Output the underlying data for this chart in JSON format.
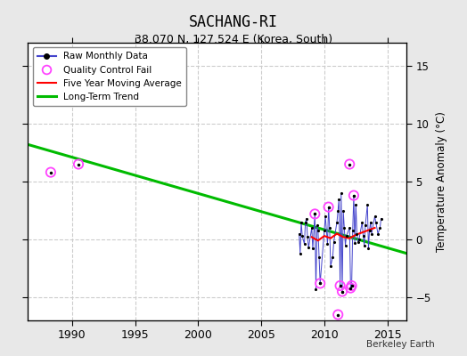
{
  "title": "SACHANG-RI",
  "subtitle": "38.070 N, 127.524 E (Korea, South)",
  "ylabel": "Temperature Anomaly (°C)",
  "credit": "Berkeley Earth",
  "xlim": [
    1986.5,
    2016.5
  ],
  "ylim": [
    -7,
    17
  ],
  "yticks": [
    -5,
    0,
    5,
    10,
    15
  ],
  "xticks": [
    1990,
    1995,
    2000,
    2005,
    2010,
    2015
  ],
  "fig_bg_color": "#e8e8e8",
  "plot_bg_color": "#ffffff",
  "grid_color": "#cccccc",
  "trend_x": [
    1986.5,
    2016.5
  ],
  "trend_y": [
    8.2,
    -1.2
  ],
  "monthly_data": [
    [
      2008.0,
      0.5
    ],
    [
      2008.083,
      -1.2
    ],
    [
      2008.167,
      1.5
    ],
    [
      2008.25,
      0.3
    ],
    [
      2008.417,
      -0.4
    ],
    [
      2008.5,
      1.5
    ],
    [
      2008.583,
      1.8
    ],
    [
      2008.667,
      0.2
    ],
    [
      2008.75,
      -0.7
    ],
    [
      2009.0,
      1.0
    ],
    [
      2009.083,
      -0.8
    ],
    [
      2009.25,
      2.2
    ],
    [
      2009.333,
      -4.3
    ],
    [
      2009.417,
      1.2
    ],
    [
      2009.5,
      0.8
    ],
    [
      2009.583,
      -1.5
    ],
    [
      2009.667,
      -3.8
    ],
    [
      2010.0,
      0.8
    ],
    [
      2010.083,
      2.0
    ],
    [
      2010.25,
      -0.4
    ],
    [
      2010.333,
      2.8
    ],
    [
      2010.417,
      1.0
    ],
    [
      2010.5,
      -2.3
    ],
    [
      2010.667,
      -1.5
    ],
    [
      2010.75,
      -0.2
    ],
    [
      2011.0,
      1.5
    ],
    [
      2011.083,
      2.5
    ],
    [
      2011.167,
      3.5
    ],
    [
      2011.25,
      -4.0
    ],
    [
      2011.333,
      4.0
    ],
    [
      2011.417,
      -4.5
    ],
    [
      2011.5,
      2.5
    ],
    [
      2011.583,
      1.0
    ],
    [
      2011.667,
      -0.5
    ],
    [
      2011.75,
      0.3
    ],
    [
      2012.0,
      1.0
    ],
    [
      2012.083,
      -4.2
    ],
    [
      2012.167,
      -4.0
    ],
    [
      2012.25,
      0.8
    ],
    [
      2012.333,
      3.8
    ],
    [
      2012.417,
      -0.3
    ],
    [
      2012.5,
      3.0
    ],
    [
      2012.583,
      0.5
    ],
    [
      2012.667,
      -0.2
    ],
    [
      2012.75,
      0.0
    ],
    [
      2013.0,
      1.5
    ],
    [
      2013.083,
      0.3
    ],
    [
      2013.167,
      -0.5
    ],
    [
      2013.25,
      1.2
    ],
    [
      2013.417,
      3.0
    ],
    [
      2013.5,
      -0.8
    ],
    [
      2013.583,
      0.8
    ],
    [
      2013.667,
      1.5
    ],
    [
      2013.75,
      0.5
    ],
    [
      2014.0,
      2.0
    ],
    [
      2014.083,
      1.5
    ],
    [
      2014.25,
      0.5
    ],
    [
      2014.417,
      1.0
    ],
    [
      2014.5,
      1.8
    ]
  ],
  "qc_fail": [
    [
      1988.3,
      5.8
    ],
    [
      1990.5,
      6.5
    ],
    [
      2012.0,
      6.5
    ],
    [
      2009.25,
      2.2
    ],
    [
      2009.667,
      -3.8
    ],
    [
      2010.333,
      2.8
    ],
    [
      2011.25,
      -4.0
    ],
    [
      2011.417,
      -4.5
    ],
    [
      2012.083,
      -4.2
    ],
    [
      2012.167,
      -4.0
    ],
    [
      2012.333,
      3.8
    ],
    [
      2011.083,
      -6.5
    ]
  ],
  "moving_avg": [
    [
      2009.0,
      0.2
    ],
    [
      2009.5,
      -0.1
    ],
    [
      2010.0,
      0.3
    ],
    [
      2010.5,
      0.1
    ],
    [
      2011.0,
      0.5
    ],
    [
      2011.5,
      0.2
    ],
    [
      2012.0,
      0.1
    ],
    [
      2012.5,
      0.4
    ],
    [
      2013.0,
      0.6
    ],
    [
      2013.5,
      0.8
    ],
    [
      2014.0,
      1.0
    ]
  ]
}
